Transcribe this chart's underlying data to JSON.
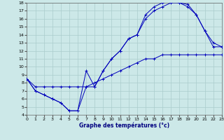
{
  "bg_color": "#cce8e8",
  "grid_color": "#aacccc",
  "line_color": "#0000bb",
  "xlabel": "Graphe des températures (°c)",
  "xlim": [
    0,
    23
  ],
  "ylim": [
    4,
    18
  ],
  "xticks": [
    0,
    1,
    2,
    3,
    4,
    5,
    6,
    7,
    8,
    9,
    10,
    11,
    12,
    13,
    14,
    15,
    16,
    17,
    18,
    19,
    20,
    21,
    22,
    23
  ],
  "yticks": [
    4,
    5,
    6,
    7,
    8,
    9,
    10,
    11,
    12,
    13,
    14,
    15,
    16,
    17,
    18
  ],
  "line1": {
    "x": [
      0,
      1,
      2,
      3,
      4,
      5,
      6,
      7,
      8,
      9,
      10,
      11,
      12,
      13,
      14,
      15,
      16,
      17,
      18,
      19,
      20,
      21,
      22,
      23
    ],
    "y": [
      8.5,
      7.0,
      6.5,
      6.0,
      5.5,
      4.5,
      4.5,
      9.5,
      7.5,
      9.5,
      11.0,
      12.0,
      13.5,
      14.0,
      16.0,
      17.0,
      17.5,
      18.0,
      18.0,
      17.5,
      16.5,
      14.5,
      12.5,
      12.5
    ]
  },
  "line2": {
    "x": [
      0,
      1,
      2,
      3,
      4,
      5,
      6,
      7,
      8,
      9,
      10,
      11,
      12,
      13,
      14,
      15,
      16,
      17,
      18,
      19,
      20,
      21,
      22,
      23
    ],
    "y": [
      8.5,
      7.0,
      6.5,
      6.0,
      5.5,
      4.5,
      4.5,
      7.5,
      7.5,
      9.5,
      11.0,
      12.0,
      13.5,
      14.0,
      16.5,
      17.5,
      18.0,
      18.5,
      18.0,
      17.8,
      16.5,
      14.5,
      13.0,
      12.5
    ]
  },
  "line3": {
    "x": [
      0,
      1,
      2,
      3,
      4,
      5,
      6,
      7,
      8,
      9,
      10,
      11,
      12,
      13,
      14,
      15,
      16,
      17,
      18,
      19,
      20,
      21,
      22,
      23
    ],
    "y": [
      8.5,
      7.5,
      7.5,
      7.5,
      7.5,
      7.5,
      7.5,
      7.5,
      8.0,
      8.5,
      9.0,
      9.5,
      10.0,
      10.5,
      11.0,
      11.0,
      11.5,
      11.5,
      11.5,
      11.5,
      11.5,
      11.5,
      11.5,
      11.5
    ]
  }
}
